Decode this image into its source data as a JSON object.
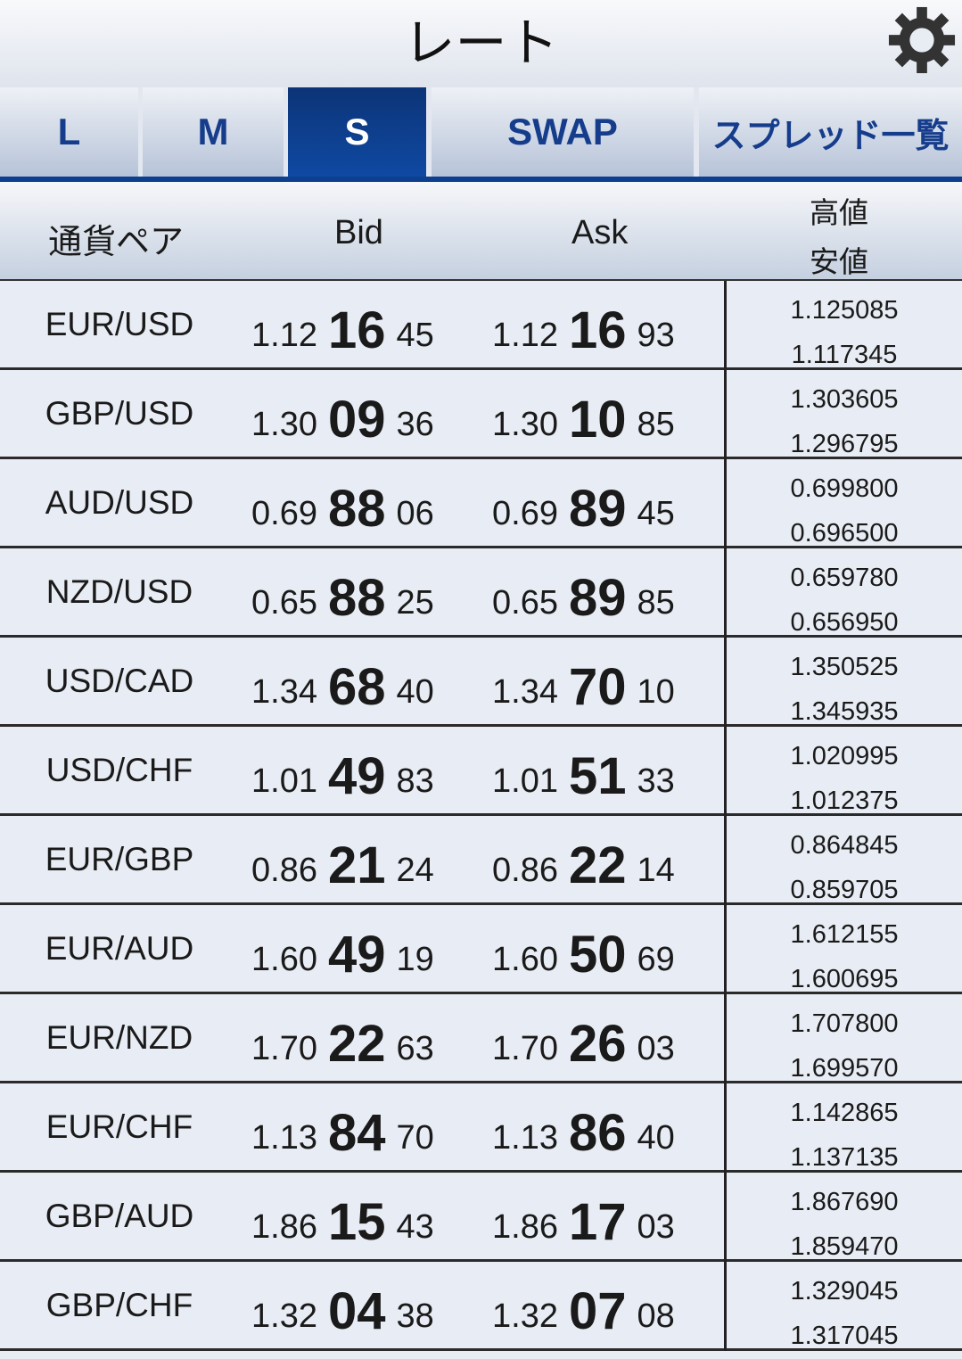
{
  "header": {
    "title": "レート",
    "settings_icon": "gear-icon"
  },
  "tabs": [
    {
      "label": "L",
      "active": false
    },
    {
      "label": "M",
      "active": false
    },
    {
      "label": "S",
      "active": true
    },
    {
      "label": "SWAP",
      "active": false
    },
    {
      "label": "スプレッド一覧",
      "active": false
    }
  ],
  "columns": {
    "pair": "通貨ペア",
    "bid": "Bid",
    "ask": "Ask",
    "high": "高値",
    "low": "安値"
  },
  "colors": {
    "accent": "#0d3f8f",
    "tab_text": "#163d8c"
  },
  "rows": [
    {
      "pair": "EUR/USD",
      "bid": [
        "1.12",
        "16",
        "45"
      ],
      "ask": [
        "1.12",
        "16",
        "93"
      ],
      "high": "1.125085",
      "low": "1.117345"
    },
    {
      "pair": "GBP/USD",
      "bid": [
        "1.30",
        "09",
        "36"
      ],
      "ask": [
        "1.30",
        "10",
        "85"
      ],
      "high": "1.303605",
      "low": "1.296795"
    },
    {
      "pair": "AUD/USD",
      "bid": [
        "0.69",
        "88",
        "06"
      ],
      "ask": [
        "0.69",
        "89",
        "45"
      ],
      "high": "0.699800",
      "low": "0.696500"
    },
    {
      "pair": "NZD/USD",
      "bid": [
        "0.65",
        "88",
        "25"
      ],
      "ask": [
        "0.65",
        "89",
        "85"
      ],
      "high": "0.659780",
      "low": "0.656950"
    },
    {
      "pair": "USD/CAD",
      "bid": [
        "1.34",
        "68",
        "40"
      ],
      "ask": [
        "1.34",
        "70",
        "10"
      ],
      "high": "1.350525",
      "low": "1.345935"
    },
    {
      "pair": "USD/CHF",
      "bid": [
        "1.01",
        "49",
        "83"
      ],
      "ask": [
        "1.01",
        "51",
        "33"
      ],
      "high": "1.020995",
      "low": "1.012375"
    },
    {
      "pair": "EUR/GBP",
      "bid": [
        "0.86",
        "21",
        "24"
      ],
      "ask": [
        "0.86",
        "22",
        "14"
      ],
      "high": "0.864845",
      "low": "0.859705"
    },
    {
      "pair": "EUR/AUD",
      "bid": [
        "1.60",
        "49",
        "19"
      ],
      "ask": [
        "1.60",
        "50",
        "69"
      ],
      "high": "1.612155",
      "low": "1.600695"
    },
    {
      "pair": "EUR/NZD",
      "bid": [
        "1.70",
        "22",
        "63"
      ],
      "ask": [
        "1.70",
        "26",
        "03"
      ],
      "high": "1.707800",
      "low": "1.699570"
    },
    {
      "pair": "EUR/CHF",
      "bid": [
        "1.13",
        "84",
        "70"
      ],
      "ask": [
        "1.13",
        "86",
        "40"
      ],
      "high": "1.142865",
      "low": "1.137135"
    },
    {
      "pair": "GBP/AUD",
      "bid": [
        "1.86",
        "15",
        "43"
      ],
      "ask": [
        "1.86",
        "17",
        "03"
      ],
      "high": "1.867690",
      "low": "1.859470"
    },
    {
      "pair": "GBP/CHF",
      "bid": [
        "1.32",
        "04",
        "38"
      ],
      "ask": [
        "1.32",
        "07",
        "08"
      ],
      "high": "1.329045",
      "low": "1.317045"
    }
  ]
}
